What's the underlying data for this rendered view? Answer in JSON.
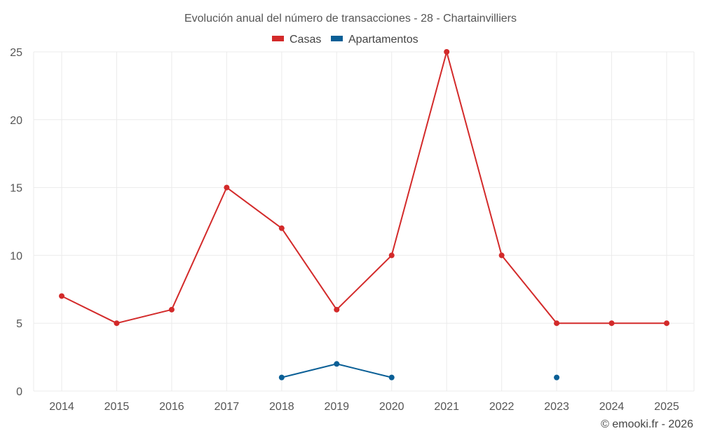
{
  "chart_data": {
    "type": "line",
    "title": "Evolución anual del número de transacciones - 28 - Chartainvilliers",
    "categories": [
      "2014",
      "2015",
      "2016",
      "2017",
      "2018",
      "2019",
      "2020",
      "2021",
      "2022",
      "2023",
      "2024",
      "2025"
    ],
    "series": [
      {
        "name": "Casas",
        "color": "#d32a2a",
        "values": [
          7,
          5,
          6,
          15,
          12,
          6,
          10,
          25,
          10,
          5,
          5,
          5
        ]
      },
      {
        "name": "Apartamentos",
        "color": "#0a5f96",
        "values": [
          null,
          null,
          null,
          null,
          1,
          2,
          1,
          null,
          null,
          1,
          null,
          null
        ]
      }
    ],
    "ylim": [
      0,
      25
    ],
    "yticks": [
      0,
      5,
      10,
      15,
      20,
      25
    ],
    "xlabel": "",
    "ylabel": "",
    "grid": true,
    "legend": "top-center"
  },
  "credit": "© emooki.fr - 2026"
}
